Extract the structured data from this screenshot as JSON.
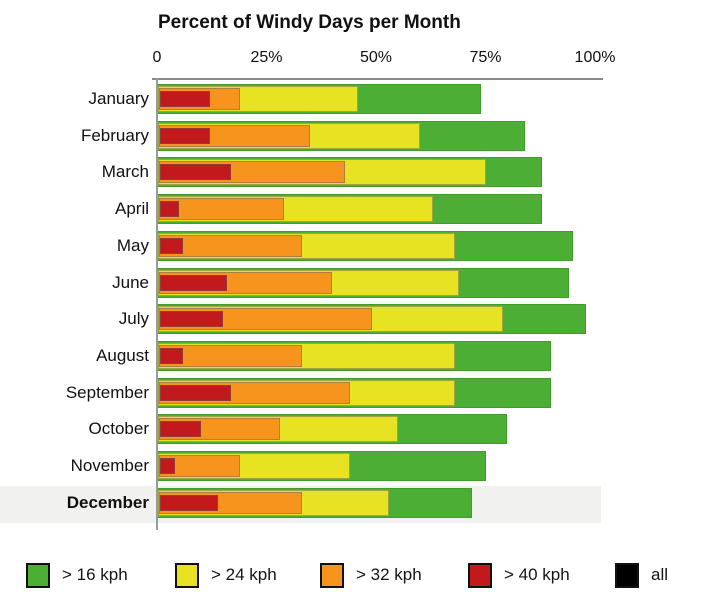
{
  "title": "Percent of Windy Days per Month",
  "axis": {
    "ticks": [
      {
        "label": "0",
        "value": 0
      },
      {
        "label": "25%",
        "value": 25
      },
      {
        "label": "50%",
        "value": 50
      },
      {
        "label": "75%",
        "value": 75
      },
      {
        "label": "100%",
        "value": 100
      }
    ]
  },
  "highlighted_month": "December",
  "legend": [
    {
      "label": "> 16 kph",
      "color": "#4cae34"
    },
    {
      "label": "> 24 kph",
      "color": "#e7e322"
    },
    {
      "label": "> 32 kph",
      "color": "#f6941d"
    },
    {
      "label": "> 40 kph",
      "color": "#c2191c"
    },
    {
      "label": "all",
      "color": "#000000"
    }
  ],
  "chart_data": {
    "type": "bar",
    "orientation": "horizontal",
    "value_encoding": "cumulative percent of days with wind above each speed threshold; bars overlap (nested), not summed",
    "title": "Percent of Windy Days per Month",
    "xlabel": "",
    "ylabel": "",
    "xlim": [
      0,
      100
    ],
    "unit": "%",
    "grid": false,
    "legend_position": "bottom",
    "categories": [
      "January",
      "February",
      "March",
      "April",
      "May",
      "June",
      "July",
      "August",
      "September",
      "October",
      "November",
      "December"
    ],
    "series": [
      {
        "name": "> 16 kph",
        "color": "#4cae34",
        "values": [
          74,
          84,
          88,
          88,
          95,
          94,
          98,
          90,
          90,
          80,
          75,
          72
        ]
      },
      {
        "name": "> 24 kph",
        "color": "#e7e322",
        "values": [
          46,
          60,
          75,
          63,
          68,
          69,
          79,
          68,
          68,
          55,
          44,
          53
        ]
      },
      {
        "name": "> 32 kph",
        "color": "#f6941d",
        "values": [
          19,
          35,
          43,
          29,
          33,
          40,
          49,
          33,
          44,
          28,
          19,
          33
        ]
      },
      {
        "name": "> 40 kph",
        "color": "#c2191c",
        "values": [
          12,
          12,
          17,
          5,
          6,
          16,
          15,
          6,
          17,
          10,
          4,
          14
        ]
      }
    ]
  }
}
